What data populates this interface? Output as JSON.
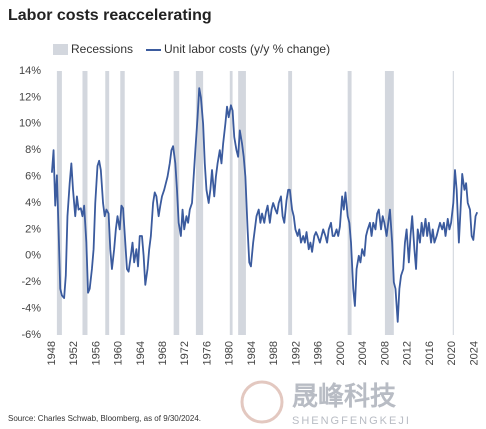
{
  "chart_data": {
    "type": "line",
    "title": "Labor costs reaccelerating",
    "source": "Source: Charles Schwab, Bloomberg, as of 9/30/2024.",
    "watermark": "晟峰科技",
    "watermark_sub": "SHENGFENGKEJI",
    "recessions": {
      "name": "Recessions",
      "color": "#d3d7de",
      "spans": [
        [
          1948.9,
          1949.8
        ],
        [
          1953.5,
          1954.4
        ],
        [
          1957.6,
          1958.3
        ],
        [
          1960.3,
          1961.1
        ],
        [
          1969.9,
          1970.9
        ],
        [
          1973.9,
          1975.2
        ],
        [
          1980.0,
          1980.5
        ],
        [
          1981.5,
          1982.9
        ],
        [
          1990.5,
          1991.2
        ],
        [
          2001.2,
          2001.9
        ],
        [
          2007.9,
          2009.5
        ],
        [
          2020.1,
          2020.3
        ]
      ]
    },
    "x": [
      1948,
      1948.3,
      1948.6,
      1948.9,
      1949.2,
      1949.5,
      1949.8,
      1950.2,
      1950.5,
      1950.8,
      1951.2,
      1951.5,
      1951.8,
      1952.2,
      1952.5,
      1952.8,
      1953.2,
      1953.5,
      1953.8,
      1954.2,
      1954.5,
      1954.8,
      1955.2,
      1955.5,
      1955.8,
      1956.2,
      1956.5,
      1956.8,
      1957.2,
      1957.5,
      1957.8,
      1958.2,
      1958.5,
      1958.8,
      1959.2,
      1959.5,
      1959.8,
      1960.2,
      1960.5,
      1960.8,
      1961.2,
      1961.5,
      1961.8,
      1962.2,
      1962.5,
      1962.8,
      1963.2,
      1963.5,
      1963.8,
      1964.2,
      1964.5,
      1964.8,
      1965.2,
      1965.5,
      1965.8,
      1966.2,
      1966.5,
      1966.8,
      1967.2,
      1967.5,
      1967.8,
      1968.2,
      1968.5,
      1968.8,
      1969.2,
      1969.5,
      1969.8,
      1970.2,
      1970.5,
      1970.8,
      1971.2,
      1971.5,
      1971.8,
      1972.2,
      1972.5,
      1972.8,
      1973.2,
      1973.5,
      1973.8,
      1974.2,
      1974.5,
      1974.8,
      1975.2,
      1975.5,
      1975.8,
      1976.2,
      1976.5,
      1976.8,
      1977.2,
      1977.5,
      1977.8,
      1978.2,
      1978.5,
      1978.8,
      1979.2,
      1979.5,
      1979.8,
      1980.2,
      1980.5,
      1980.8,
      1981.2,
      1981.5,
      1981.8,
      1982.2,
      1982.5,
      1982.8,
      1983.2,
      1983.5,
      1983.8,
      1984.2,
      1984.5,
      1984.8,
      1985.2,
      1985.5,
      1985.8,
      1986.2,
      1986.5,
      1986.8,
      1987.2,
      1987.5,
      1987.8,
      1988.2,
      1988.5,
      1988.8,
      1989.2,
      1989.5,
      1989.8,
      1990.2,
      1990.5,
      1990.8,
      1991.2,
      1991.5,
      1991.8,
      1992.2,
      1992.5,
      1992.8,
      1993.2,
      1993.5,
      1993.8,
      1994.2,
      1994.5,
      1994.8,
      1995.2,
      1995.5,
      1995.8,
      1996.2,
      1996.5,
      1996.8,
      1997.2,
      1997.5,
      1997.8,
      1998.2,
      1998.5,
      1998.8,
      1999.2,
      1999.5,
      1999.8,
      2000.2,
      2000.5,
      2000.8,
      2001.2,
      2001.5,
      2001.8,
      2002.2,
      2002.5,
      2002.8,
      2003.2,
      2003.5,
      2003.8,
      2004.2,
      2004.5,
      2004.8,
      2005.2,
      2005.5,
      2005.8,
      2006.2,
      2006.5,
      2006.8,
      2007.2,
      2007.5,
      2007.8,
      2008.2,
      2008.5,
      2008.8,
      2009.2,
      2009.5,
      2009.8,
      2010.2,
      2010.5,
      2010.8,
      2011.2,
      2011.5,
      2011.8,
      2012.2,
      2012.5,
      2012.8,
      2013.2,
      2013.5,
      2013.8,
      2014.2,
      2014.5,
      2014.8,
      2015.2,
      2015.5,
      2015.8,
      2016.2,
      2016.5,
      2016.8,
      2017.2,
      2017.5,
      2017.8,
      2018.2,
      2018.5,
      2018.8,
      2019.2,
      2019.5,
      2019.8,
      2020.2,
      2020.5,
      2020.8,
      2021.2,
      2021.5,
      2021.8,
      2022.2,
      2022.5,
      2022.8,
      2023.2,
      2023.5,
      2023.8,
      2024.2,
      2024.5
    ],
    "series": [
      {
        "name": "Unit labor costs (y/y % change)",
        "color": "#3b5b9e",
        "values": [
          6.3,
          8,
          3.8,
          6.1,
          2,
          -2.5,
          -3,
          -3.2,
          -1.5,
          3,
          5.5,
          7,
          5,
          3,
          4.5,
          3.5,
          3.6,
          3,
          3.8,
          1,
          -2.8,
          -2.5,
          -1,
          0.5,
          4,
          6.8,
          7.2,
          6.5,
          4,
          3,
          3.5,
          3.2,
          0.5,
          -1,
          0.5,
          2,
          3,
          2,
          3.8,
          3.6,
          1,
          -1,
          -1.2,
          0,
          1,
          -0.5,
          0.5,
          -0.8,
          1.5,
          1.5,
          0,
          -2.2,
          -1,
          0.5,
          1.5,
          4,
          4.8,
          4.5,
          3,
          3.8,
          4.5,
          5,
          5.5,
          6,
          7,
          8,
          8.3,
          7,
          5,
          2.5,
          1.5,
          3.5,
          2,
          3,
          2.5,
          3.5,
          4,
          6,
          8,
          10.5,
          12.7,
          12,
          10,
          7,
          5,
          4,
          5,
          6.5,
          4.5,
          6,
          7,
          8,
          7,
          8.5,
          10,
          11.3,
          10.5,
          11.4,
          11,
          9,
          8,
          7.5,
          9.5,
          8.5,
          7.5,
          6,
          2,
          -0.5,
          -0.8,
          1,
          2,
          3,
          3.5,
          2.5,
          3.2,
          2.5,
          3.3,
          3.8,
          2.5,
          3.5,
          4,
          3.5,
          3.2,
          4,
          4.5,
          3,
          2.5,
          4.2,
          5,
          5,
          3.5,
          3,
          2,
          1.5,
          2,
          1,
          1.5,
          1,
          1.8,
          0.5,
          1,
          0.3,
          1.5,
          1.8,
          1.5,
          1,
          1.5,
          2,
          1.5,
          1,
          2,
          2.5,
          1.5,
          1.5,
          2,
          1.5,
          2.2,
          4.5,
          3.5,
          4.8,
          3,
          2.5,
          1,
          -2.5,
          -3.8,
          -1,
          0,
          -0.5,
          0.5,
          0,
          1.5,
          2,
          2.5,
          1.5,
          2.5,
          2,
          3.2,
          3.5,
          2,
          3,
          2.5,
          1.5,
          2.5,
          3.5,
          1,
          -2,
          -2.5,
          -5,
          -2.5,
          -1.5,
          -1,
          1,
          2,
          -0.5,
          1.5,
          3,
          0.5,
          -1,
          2,
          1,
          2.5,
          1.5,
          2.8,
          1.5,
          2.5,
          1,
          2,
          1,
          1.5,
          2,
          2.5,
          2,
          2.5,
          1.5,
          2.8,
          2,
          2.5,
          4,
          6.5,
          5,
          1,
          3.5,
          6.2,
          5,
          5.5,
          4,
          3.5,
          1.5,
          1.2,
          3,
          3.3
        ]
      }
    ],
    "xlim": [
      1947.3,
      2025
    ],
    "xticks": [
      1948,
      1952,
      1956,
      1960,
      1964,
      1968,
      1972,
      1976,
      1980,
      1984,
      1988,
      1992,
      1996,
      2000,
      2004,
      2008,
      2012,
      2016,
      2020,
      2024
    ],
    "ylim": [
      -6,
      14
    ],
    "yticks": [
      {
        "value": -6,
        "label": "-6%"
      },
      {
        "value": -4,
        "label": "-4%"
      },
      {
        "value": -2,
        "label": "-2%"
      },
      {
        "value": 0,
        "label": "0%"
      },
      {
        "value": 2,
        "label": "2%"
      },
      {
        "value": 4,
        "label": "4%"
      },
      {
        "value": 6,
        "label": "6%"
      },
      {
        "value": 8,
        "label": "8%"
      },
      {
        "value": 10,
        "label": "10%"
      },
      {
        "value": 12,
        "label": "12%"
      },
      {
        "value": 14,
        "label": "14%"
      }
    ],
    "grid": false
  }
}
